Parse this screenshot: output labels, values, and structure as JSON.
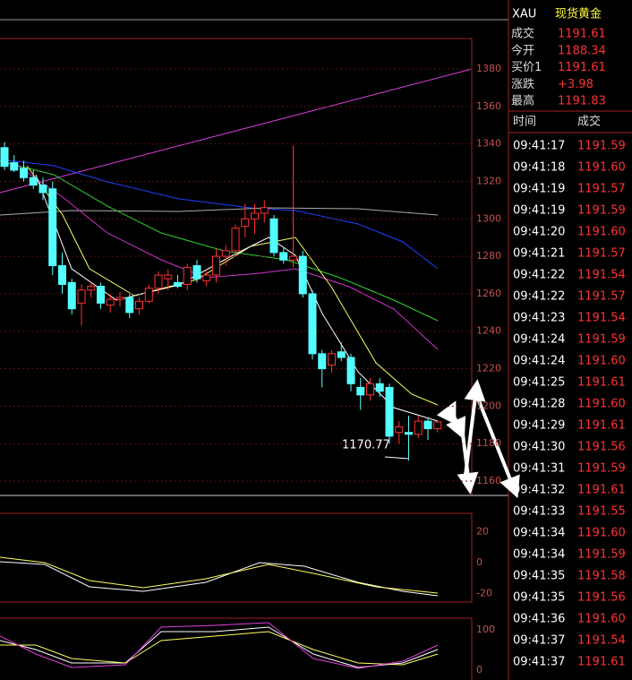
{
  "quote": {
    "symbol": "XAU",
    "name": "现货黄金",
    "fields": [
      {
        "label": "成交",
        "value": "1191.61"
      },
      {
        "label": "今开",
        "value": "1188.34"
      },
      {
        "label": "买价1",
        "value": "1191.61"
      },
      {
        "label": "涨跌",
        "value": "+3.98"
      },
      {
        "label": "最高",
        "value": "1191.83"
      }
    ]
  },
  "trades": {
    "headers": [
      "时间",
      "成交"
    ],
    "rows": [
      [
        "09:41:17",
        "1191.59"
      ],
      [
        "09:41:18",
        "1191.60"
      ],
      [
        "09:41:19",
        "1191.57"
      ],
      [
        "09:41:19",
        "1191.59"
      ],
      [
        "09:41:20",
        "1191.60"
      ],
      [
        "09:41:21",
        "1191.57"
      ],
      [
        "09:41:22",
        "1191.54"
      ],
      [
        "09:41:22",
        "1191.57"
      ],
      [
        "09:41:23",
        "1191.54"
      ],
      [
        "09:41:24",
        "1191.59"
      ],
      [
        "09:41:24",
        "1191.60"
      ],
      [
        "09:41:25",
        "1191.61"
      ],
      [
        "09:41:28",
        "1191.60"
      ],
      [
        "09:41:29",
        "1191.61"
      ],
      [
        "09:41:30",
        "1191.56"
      ],
      [
        "09:41:31",
        "1191.59"
      ],
      [
        "09:41:32",
        "1191.61"
      ],
      [
        "09:41:33",
        "1191.55"
      ],
      [
        "09:41:34",
        "1191.60"
      ],
      [
        "09:41:34",
        "1191.59"
      ],
      [
        "09:41:35",
        "1191.58"
      ],
      [
        "09:41:35",
        "1191.56"
      ],
      [
        "09:41:36",
        "1191.60"
      ],
      [
        "09:41:37",
        "1191.54"
      ],
      [
        "09:41:37",
        "1191.61"
      ]
    ]
  },
  "chart": {
    "price_ticks": [
      1380,
      1360,
      1340,
      1320,
      1300,
      1280,
      1260,
      1240,
      1220,
      1200,
      1180,
      1160
    ],
    "annotation": "1170.77",
    "macd_ticks": [
      20,
      0,
      -20
    ],
    "kdj_ticks": [
      100,
      0
    ],
    "candles": [
      [
        1338,
        1341,
        1326,
        1328
      ],
      [
        1330,
        1334,
        1325,
        1326
      ],
      [
        1327,
        1331,
        1320,
        1322
      ],
      [
        1322,
        1326,
        1316,
        1318
      ],
      [
        1318,
        1322,
        1310,
        1314
      ],
      [
        1316,
        1320,
        1270,
        1275
      ],
      [
        1275,
        1282,
        1260,
        1265
      ],
      [
        1266,
        1268,
        1249,
        1252
      ],
      [
        1255,
        1265,
        1243,
        1262
      ],
      [
        1262,
        1266,
        1258,
        1264
      ],
      [
        1264,
        1266,
        1252,
        1255
      ],
      [
        1254,
        1260,
        1250,
        1257
      ],
      [
        1257,
        1261,
        1253,
        1258
      ],
      [
        1258,
        1260,
        1247,
        1250
      ],
      [
        1252,
        1258,
        1249,
        1256
      ],
      [
        1256,
        1265,
        1255,
        1263
      ],
      [
        1263,
        1272,
        1260,
        1270
      ],
      [
        1268,
        1273,
        1262,
        1270
      ],
      [
        1266,
        1270,
        1263,
        1264
      ],
      [
        1265,
        1276,
        1262,
        1274
      ],
      [
        1275,
        1278,
        1266,
        1268
      ],
      [
        1267,
        1272,
        1264,
        1270
      ],
      [
        1270,
        1284,
        1266,
        1280
      ],
      [
        1280,
        1286,
        1275,
        1283
      ],
      [
        1283,
        1297,
        1280,
        1295
      ],
      [
        1296,
        1308,
        1290,
        1300
      ],
      [
        1300,
        1308,
        1292,
        1303
      ],
      [
        1303,
        1310,
        1298,
        1306
      ],
      [
        1300,
        1302,
        1280,
        1282
      ],
      [
        1282,
        1285,
        1276,
        1278
      ],
      [
        1278,
        1339,
        1274,
        1280
      ],
      [
        1280,
        1283,
        1258,
        1260
      ],
      [
        1260,
        1262,
        1225,
        1228
      ],
      [
        1228,
        1230,
        1210,
        1220
      ],
      [
        1222,
        1230,
        1218,
        1228
      ],
      [
        1229,
        1234,
        1224,
        1226
      ],
      [
        1226,
        1228,
        1208,
        1212
      ],
      [
        1210,
        1215,
        1198,
        1206
      ],
      [
        1206,
        1215,
        1203,
        1212
      ],
      [
        1212,
        1215,
        1205,
        1208
      ],
      [
        1210,
        1212,
        1180,
        1184
      ],
      [
        1186,
        1192,
        1180,
        1189
      ],
      [
        1186,
        1195,
        1171,
        1185
      ],
      [
        1185,
        1195,
        1183,
        1192
      ],
      [
        1192,
        1194,
        1182,
        1188
      ],
      [
        1188,
        1192,
        1186,
        1191.61
      ]
    ]
  }
}
